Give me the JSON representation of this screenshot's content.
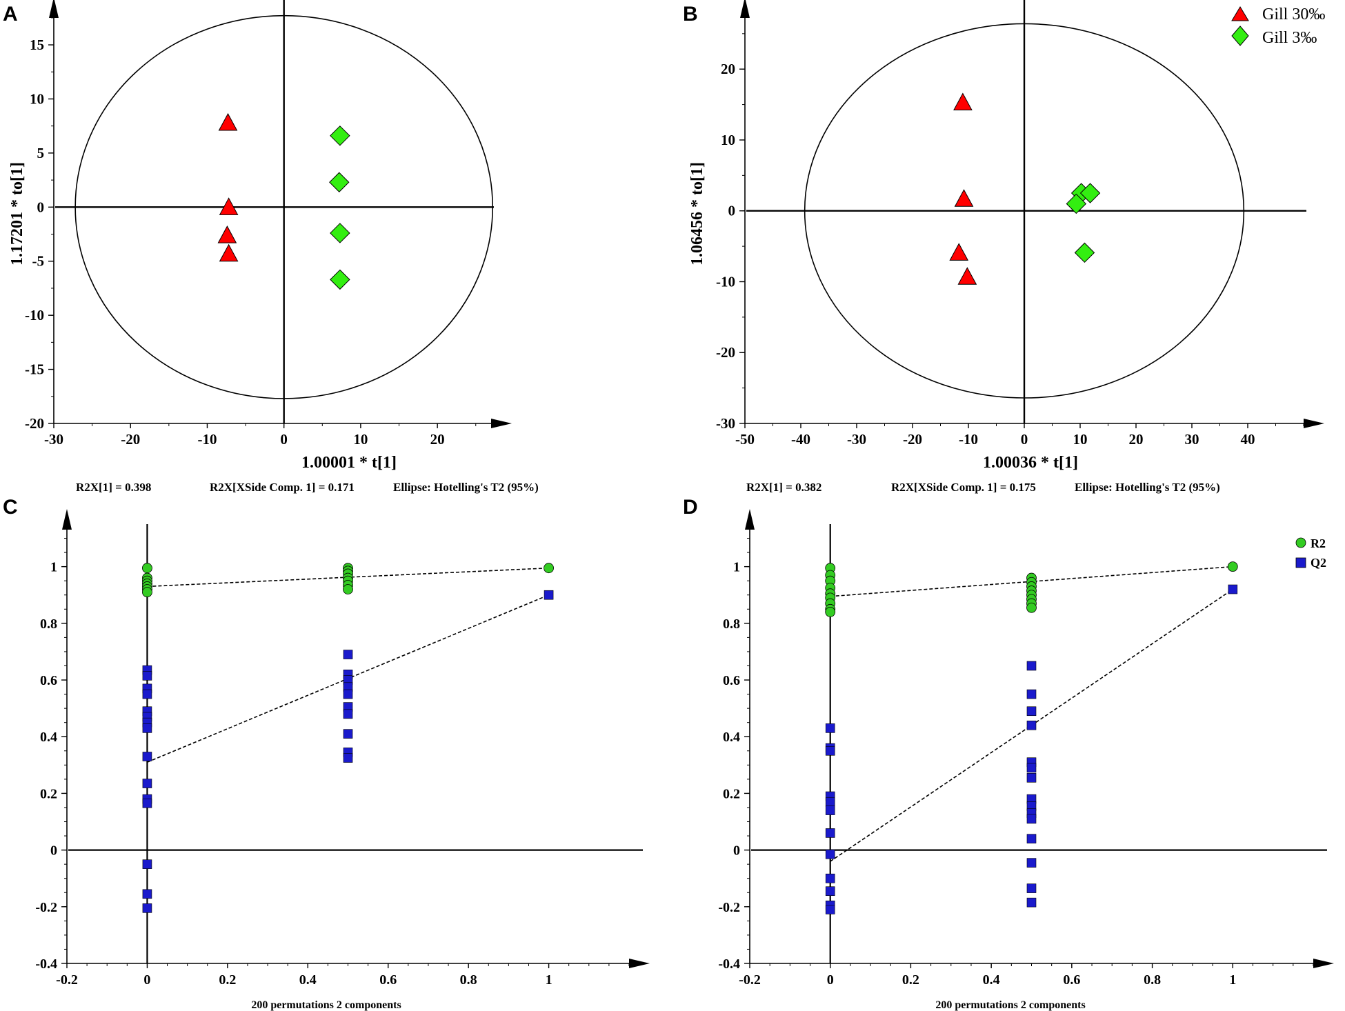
{
  "colors": {
    "triangle_fill": "#ff0000",
    "diamond_fill": "#33ee11",
    "r2_fill": "#33cc22",
    "q2_fill": "#1a1acc",
    "stroke": "#000000",
    "background": "#ffffff"
  },
  "legend_ab": {
    "gill30": "Gill 30‰",
    "gill3": "Gill 3‰"
  },
  "legend_cd": {
    "r2": "R2",
    "q2": "Q2"
  },
  "chart_data": [
    {
      "panel": "A",
      "type": "scatter",
      "xlabel": "1.00001 * t[1]",
      "ylabel": "1.17201 * to[1]",
      "xlim": [
        -30,
        27
      ],
      "ylim": [
        -20,
        18
      ],
      "xticks": [
        "-30",
        "-20",
        "-10",
        "0",
        "10",
        "20"
      ],
      "yticks": [
        "-20",
        "-15",
        "-10",
        "-5",
        "0",
        "5",
        "10",
        "15"
      ],
      "ellipse": {
        "rx": 27.2,
        "ry": 17.7
      },
      "footer": {
        "r2x": "R2X[1] = 0.398",
        "r2x_side": "R2X[XSide Comp. 1] = 0.171",
        "ellipse_note": "Ellipse: Hotelling's T2 (95%)"
      },
      "series": [
        {
          "name": "Gill 30‰",
          "marker": "triangle",
          "points": [
            [
              -7.3,
              7.8
            ],
            [
              -7.2,
              0.0
            ],
            [
              -7.4,
              -2.6
            ],
            [
              -7.2,
              -4.3
            ]
          ]
        },
        {
          "name": "Gill 3‰",
          "marker": "diamond",
          "points": [
            [
              7.3,
              6.6
            ],
            [
              7.2,
              2.3
            ],
            [
              7.3,
              -2.4
            ],
            [
              7.3,
              -6.7
            ]
          ]
        }
      ]
    },
    {
      "panel": "B",
      "type": "scatter",
      "xlabel": "1.00036 * t[1]",
      "ylabel": "1.06456 * to[1]",
      "xlim": [
        -50,
        50
      ],
      "ylim": [
        -30,
        28
      ],
      "xticks": [
        "-50",
        "-40",
        "-30",
        "-20",
        "-10",
        "0",
        "10",
        "20",
        "30",
        "40"
      ],
      "yticks": [
        "-30",
        "-20",
        "-10",
        "0",
        "10",
        "20"
      ],
      "ellipse": {
        "rx": 39.3,
        "ry": 26.4
      },
      "footer": {
        "r2x": "R2X[1] = 0.382",
        "r2x_side": "R2X[XSide Comp. 1] = 0.175",
        "ellipse_note": "Ellipse: Hotelling's T2 (95%)"
      },
      "series": [
        {
          "name": "Gill 30‰",
          "marker": "triangle",
          "points": [
            [
              -11,
              15.3
            ],
            [
              -10.8,
              1.7
            ],
            [
              -11.7,
              -5.9
            ],
            [
              -10.2,
              -9.3
            ]
          ]
        },
        {
          "name": "Gill 3‰",
          "marker": "diamond",
          "points": [
            [
              10.2,
              2.5
            ],
            [
              11.8,
              2.5
            ],
            [
              9.3,
              1.0
            ],
            [
              10.8,
              -5.9
            ]
          ]
        }
      ]
    },
    {
      "panel": "C",
      "type": "scatter",
      "xlabel": "200 permutations 2 components",
      "ylabel": "",
      "xlim": [
        -0.2,
        1.2
      ],
      "ylim": [
        -0.4,
        1.15
      ],
      "xticks": [
        "-0.2",
        "0",
        "0.2",
        "0.4",
        "0.6",
        "0.8",
        "1"
      ],
      "yticks": [
        "-0.4",
        "-0.2",
        "0",
        "0.2",
        "0.4",
        "0.6",
        "0.8",
        "1"
      ],
      "series": [
        {
          "name": "R2",
          "marker": "circle",
          "points": [
            [
              0,
              0.995
            ],
            [
              0,
              0.96
            ],
            [
              0,
              0.95
            ],
            [
              0,
              0.94
            ],
            [
              0,
              0.93
            ],
            [
              0,
              0.92
            ],
            [
              0,
              0.91
            ],
            [
              0.5,
              0.995
            ],
            [
              0.5,
              0.985
            ],
            [
              0.5,
              0.975
            ],
            [
              0.5,
              0.96
            ],
            [
              0.5,
              0.95
            ],
            [
              0.5,
              0.935
            ],
            [
              0.5,
              0.92
            ],
            [
              1,
              0.995
            ]
          ],
          "regression": [
            [
              0,
              0.93
            ],
            [
              1,
              0.995
            ]
          ]
        },
        {
          "name": "Q2",
          "marker": "square",
          "points": [
            [
              0,
              0.635
            ],
            [
              0,
              0.615
            ],
            [
              0,
              0.57
            ],
            [
              0,
              0.55
            ],
            [
              0,
              0.49
            ],
            [
              0,
              0.47
            ],
            [
              0,
              0.45
            ],
            [
              0,
              0.43
            ],
            [
              0,
              0.33
            ],
            [
              0,
              0.235
            ],
            [
              0,
              0.18
            ],
            [
              0,
              0.165
            ],
            [
              0,
              -0.05
            ],
            [
              0,
              -0.155
            ],
            [
              0,
              -0.205
            ],
            [
              0.5,
              0.69
            ],
            [
              0.5,
              0.62
            ],
            [
              0.5,
              0.6
            ],
            [
              0.5,
              0.575
            ],
            [
              0.5,
              0.55
            ],
            [
              0.5,
              0.505
            ],
            [
              0.5,
              0.48
            ],
            [
              0.5,
              0.41
            ],
            [
              0.5,
              0.345
            ],
            [
              0.5,
              0.325
            ],
            [
              1,
              0.9
            ]
          ],
          "regression": [
            [
              0,
              0.31
            ],
            [
              1,
              0.9
            ]
          ]
        }
      ]
    },
    {
      "panel": "D",
      "type": "scatter",
      "xlabel": "200 permutations 2 components",
      "ylabel": "",
      "xlim": [
        -0.2,
        1.2
      ],
      "ylim": [
        -0.4,
        1.15
      ],
      "xticks": [
        "-0.2",
        "0",
        "0.2",
        "0.4",
        "0.6",
        "0.8",
        "1"
      ],
      "yticks": [
        "-0.4",
        "-0.2",
        "0",
        "0.2",
        "0.4",
        "0.6",
        "0.8",
        "1"
      ],
      "series": [
        {
          "name": "R2",
          "marker": "circle",
          "points": [
            [
              0,
              0.995
            ],
            [
              0,
              0.97
            ],
            [
              0,
              0.95
            ],
            [
              0,
              0.925
            ],
            [
              0,
              0.905
            ],
            [
              0,
              0.89
            ],
            [
              0,
              0.87
            ],
            [
              0,
              0.85
            ],
            [
              0,
              0.84
            ],
            [
              0.5,
              0.96
            ],
            [
              0.5,
              0.945
            ],
            [
              0.5,
              0.93
            ],
            [
              0.5,
              0.915
            ],
            [
              0.5,
              0.9
            ],
            [
              0.5,
              0.885
            ],
            [
              0.5,
              0.87
            ],
            [
              0.5,
              0.855
            ],
            [
              1,
              1.0
            ]
          ],
          "regression": [
            [
              0,
              0.895
            ],
            [
              1,
              1.0
            ]
          ]
        },
        {
          "name": "Q2",
          "marker": "square",
          "points": [
            [
              0,
              0.43
            ],
            [
              0,
              0.36
            ],
            [
              0,
              0.35
            ],
            [
              0,
              0.19
            ],
            [
              0,
              0.17
            ],
            [
              0,
              0.14
            ],
            [
              0,
              0.06
            ],
            [
              0,
              -0.015
            ],
            [
              0,
              -0.1
            ],
            [
              0,
              -0.145
            ],
            [
              0,
              -0.195
            ],
            [
              0,
              -0.21
            ],
            [
              0.5,
              0.65
            ],
            [
              0.5,
              0.55
            ],
            [
              0.5,
              0.49
            ],
            [
              0.5,
              0.44
            ],
            [
              0.5,
              0.31
            ],
            [
              0.5,
              0.29
            ],
            [
              0.5,
              0.255
            ],
            [
              0.5,
              0.18
            ],
            [
              0.5,
              0.155
            ],
            [
              0.5,
              0.13
            ],
            [
              0.5,
              0.11
            ],
            [
              0.5,
              0.04
            ],
            [
              0.5,
              -0.045
            ],
            [
              0.5,
              -0.135
            ],
            [
              0.5,
              -0.185
            ],
            [
              1,
              0.92
            ]
          ],
          "regression": [
            [
              0,
              -0.04
            ],
            [
              1,
              0.92
            ]
          ]
        }
      ]
    }
  ]
}
